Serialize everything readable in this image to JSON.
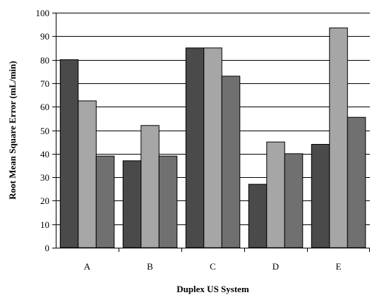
{
  "chart_data": {
    "type": "bar",
    "categories": [
      "A",
      "B",
      "C",
      "D",
      "E"
    ],
    "series": [
      {
        "values": [
          80,
          37,
          85,
          27,
          44
        ],
        "color": "#4a4a4a"
      },
      {
        "values": [
          62.5,
          52,
          85,
          45,
          93.5
        ],
        "color": "#a6a6a6"
      },
      {
        "values": [
          39,
          39,
          73,
          40,
          55.5
        ],
        "color": "#707070"
      }
    ],
    "title": "",
    "xlabel": "Duplex US System",
    "ylabel": "Root Mean Square Error (mL/min)",
    "ylim": [
      0,
      100
    ],
    "yticks": [
      0,
      10,
      20,
      30,
      40,
      50,
      60,
      70,
      80,
      90,
      100
    ],
    "grid": true,
    "gridline_color": "#000000",
    "legend": "none"
  }
}
